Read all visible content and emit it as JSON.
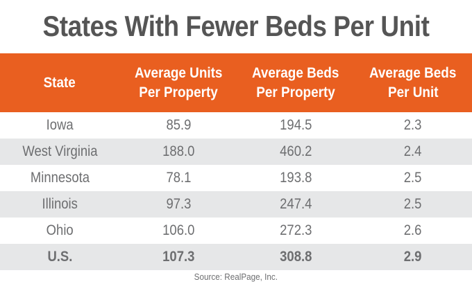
{
  "chart_data": {
    "type": "table",
    "title": "States With Fewer Beds Per Unit",
    "columns": [
      "State",
      "Average Units Per Property",
      "Average Beds Per Property",
      "Average Beds Per Unit"
    ],
    "header_lines": [
      [
        "State"
      ],
      [
        "Average Units",
        "Per Property"
      ],
      [
        "Average Beds",
        "Per Property"
      ],
      [
        "Average Beds",
        "Per Unit"
      ]
    ],
    "rows": [
      {
        "state": "Iowa",
        "units_per_property": "85.9",
        "beds_per_property": "194.5",
        "beds_per_unit": "2.3"
      },
      {
        "state": "West Virginia",
        "units_per_property": "188.0",
        "beds_per_property": "460.2",
        "beds_per_unit": "2.4"
      },
      {
        "state": "Minnesota",
        "units_per_property": "78.1",
        "beds_per_property": "193.8",
        "beds_per_unit": "2.5"
      },
      {
        "state": "Illinois",
        "units_per_property": "97.3",
        "beds_per_property": "247.4",
        "beds_per_unit": "2.5"
      },
      {
        "state": "Ohio",
        "units_per_property": "106.0",
        "beds_per_property": "272.3",
        "beds_per_unit": "2.6"
      },
      {
        "state": "U.S.",
        "units_per_property": "107.3",
        "beds_per_property": "308.8",
        "beds_per_unit": "2.9",
        "is_total": true
      }
    ],
    "source": "Source: RealPage, Inc."
  },
  "colors": {
    "header_bg": "#e95f20",
    "header_text": "#ffffff",
    "title_text": "#555555",
    "body_text": "#6d6e70",
    "stripe": "#e6e7e8",
    "row_bg": "#ffffff"
  }
}
